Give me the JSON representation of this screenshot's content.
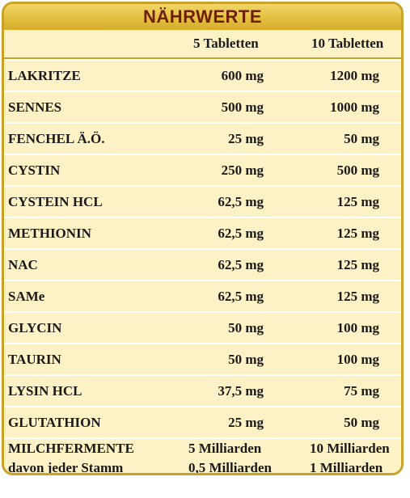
{
  "title": "NÄHRWERTE",
  "columns": [
    "5 Tabletten",
    "10 Tabletten"
  ],
  "rows": [
    {
      "name": "LAKRITZE",
      "v5": "600 mg",
      "v10": "1200 mg"
    },
    {
      "name": "SENNES",
      "v5": "500 mg",
      "v10": "1000 mg"
    },
    {
      "name": "FENCHEL Ä.Ö.",
      "v5": "25 mg",
      "v10": "50 mg"
    },
    {
      "name": "CYSTIN",
      "v5": "250 mg",
      "v10": "500 mg"
    },
    {
      "name": "CYSTEIN HCL",
      "v5": "62,5 mg",
      "v10": "125 mg"
    },
    {
      "name": "METHIONIN",
      "v5": "62,5 mg",
      "v10": "125 mg"
    },
    {
      "name": "NAC",
      "v5": "62,5 mg",
      "v10": "125 mg"
    },
    {
      "name": "SAMe",
      "v5": "62,5 mg",
      "v10": "125 mg"
    },
    {
      "name": "GLYCIN",
      "v5": "50 mg",
      "v10": "100 mg"
    },
    {
      "name": "TAURIN",
      "v5": "50 mg",
      "v10": "100 mg"
    },
    {
      "name": "LYSIN HCL",
      "v5": "37,5 mg",
      "v10": "75 mg"
    },
    {
      "name": "GLUTATHION",
      "v5": "25 mg",
      "v10": "50 mg"
    }
  ],
  "last_rows": [
    {
      "name": "MILCHFERMENTE",
      "v5": "5 Milliarden",
      "v10": "10 Milliarden"
    },
    {
      "name": "davon jeder Stamm",
      "v5": "0,5 Milliarden",
      "v10": "1 Milliarden"
    }
  ],
  "colors": {
    "gold": "#c9a227",
    "title_text": "#6e1f06",
    "row_background": "#fcf2c6"
  }
}
